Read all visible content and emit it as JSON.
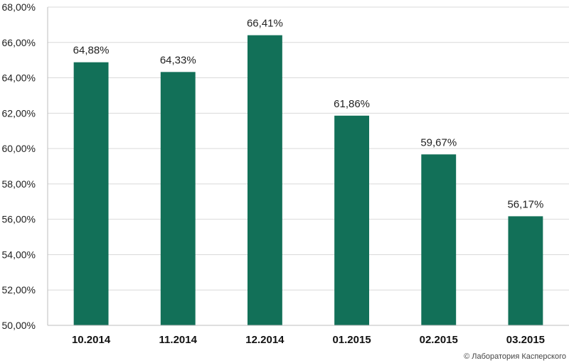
{
  "chart_data": {
    "type": "bar",
    "categories": [
      "10.2014",
      "11.2014",
      "12.2014",
      "01.2015",
      "02.2015",
      "03.2015"
    ],
    "values": [
      64.88,
      64.33,
      66.41,
      61.86,
      59.67,
      56.17
    ],
    "value_labels": [
      "64,88%",
      "64,33%",
      "66,41%",
      "61,86%",
      "59,67%",
      "56,17%"
    ],
    "y_ticks": [
      50,
      52,
      54,
      56,
      58,
      60,
      62,
      64,
      66,
      68
    ],
    "y_tick_labels": [
      "50,00%",
      "52,00%",
      "54,00%",
      "56,00%",
      "58,00%",
      "60,00%",
      "62,00%",
      "64,00%",
      "66,00%",
      "68,00%"
    ],
    "ylim": [
      50,
      68
    ],
    "title": "",
    "xlabel": "",
    "ylabel": "",
    "grid": true,
    "legend": "none",
    "bar_color": "#127058",
    "grid_color": "#d9d9d9"
  },
  "credit": "© Лаборатория Касперского"
}
